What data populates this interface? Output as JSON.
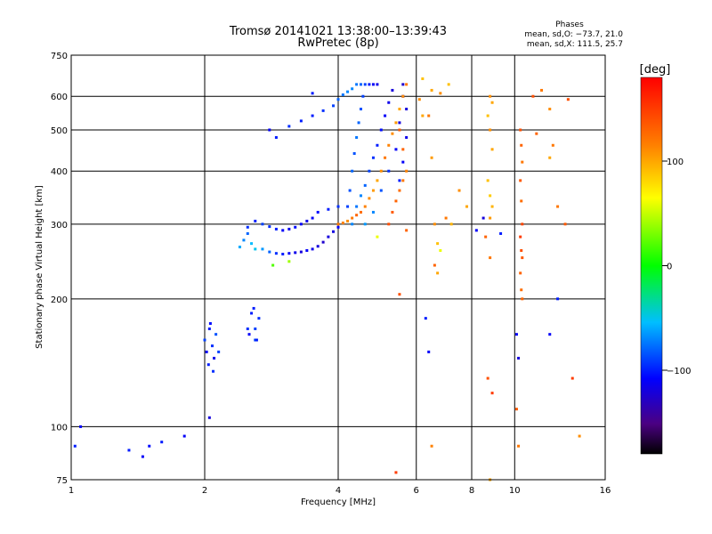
{
  "header": {
    "title_line1": "Tromsø 20141021 13:38:00–13:39:43",
    "title_line2": "RwPretec (8p)",
    "phases_title": "Phases",
    "phases_o": "mean, sd,O: −73.7, 21.0",
    "phases_x": "mean, sd,X: 111.5, 25.7"
  },
  "chart_data": {
    "type": "scatter",
    "title": "Tromsø 20141021 13:38:00–13:39:43",
    "subtitle": "RwPretec (8p)",
    "xlabel": "Frequency [MHz]",
    "ylabel": "Stationary phase Virtual Height [km]",
    "xscale": "log",
    "yscale": "log",
    "xlim": [
      1,
      16
    ],
    "ylim": [
      75,
      750
    ],
    "x_ticks": [
      1,
      2,
      4,
      6,
      8,
      10,
      16
    ],
    "x_tick_labels": [
      "1",
      "2",
      "4",
      "6",
      "8",
      "10",
      "16"
    ],
    "y_ticks": [
      75,
      100,
      200,
      300,
      400,
      500,
      600,
      750
    ],
    "y_tick_labels": [
      "75",
      "100",
      "200",
      "300",
      "400",
      "500",
      "600",
      "750"
    ],
    "grid": true,
    "colorbar": {
      "label": "[deg]",
      "range": [
        -180,
        180
      ],
      "ticks": [
        100,
        0,
        -100
      ],
      "tick_labels": [
        "100",
        "0",
        "−100"
      ]
    },
    "series": [
      {
        "mode": "O",
        "points": [
          [
            2.0,
            160,
            -90
          ],
          [
            2.02,
            150,
            -110
          ],
          [
            2.05,
            170,
            -100
          ],
          [
            2.08,
            155,
            -95
          ],
          [
            2.1,
            145,
            -115
          ],
          [
            2.12,
            165,
            -85
          ],
          [
            2.04,
            140,
            -100
          ],
          [
            2.15,
            150,
            -90
          ],
          [
            2.06,
            175,
            -105
          ],
          [
            2.09,
            135,
            -95
          ],
          [
            2.5,
            170,
            -95
          ],
          [
            2.55,
            185,
            -100
          ],
          [
            2.6,
            160,
            -90
          ],
          [
            2.52,
            165,
            -110
          ],
          [
            2.58,
            190,
            -100
          ],
          [
            2.4,
            265,
            -60
          ],
          [
            2.45,
            275,
            -70
          ],
          [
            2.5,
            285,
            -80
          ],
          [
            2.55,
            270,
            -55
          ],
          [
            2.6,
            262,
            -50
          ],
          [
            2.7,
            262,
            -65
          ],
          [
            2.8,
            258,
            -80
          ],
          [
            2.9,
            256,
            -95
          ],
          [
            3.0,
            255,
            -100
          ],
          [
            3.1,
            256,
            -110
          ],
          [
            3.2,
            257,
            -115
          ],
          [
            3.3,
            258,
            -120
          ],
          [
            3.4,
            260,
            -110
          ],
          [
            3.5,
            262,
            -115
          ],
          [
            3.6,
            266,
            -120
          ],
          [
            3.7,
            272,
            -125
          ],
          [
            3.8,
            280,
            -120
          ],
          [
            3.9,
            288,
            -118
          ],
          [
            4.0,
            295,
            -110
          ],
          [
            2.5,
            295,
            -95
          ],
          [
            2.6,
            305,
            -100
          ],
          [
            2.7,
            300,
            -90
          ],
          [
            2.8,
            296,
            -95
          ],
          [
            2.9,
            292,
            -100
          ],
          [
            3.0,
            290,
            -110
          ],
          [
            3.1,
            292,
            -115
          ],
          [
            3.2,
            295,
            -105
          ],
          [
            3.3,
            300,
            -110
          ],
          [
            3.4,
            305,
            -115
          ],
          [
            3.5,
            310,
            -110
          ],
          [
            3.6,
            320,
            -105
          ],
          [
            3.8,
            325,
            -100
          ],
          [
            4.0,
            330,
            -95
          ],
          [
            2.9,
            480,
            -100
          ],
          [
            3.1,
            510,
            -95
          ],
          [
            3.3,
            525,
            -100
          ],
          [
            3.5,
            540,
            -100
          ],
          [
            3.7,
            555,
            -95
          ],
          [
            3.9,
            570,
            -90
          ],
          [
            4.0,
            590,
            -80
          ],
          [
            4.1,
            605,
            -75
          ],
          [
            4.2,
            615,
            -70
          ],
          [
            4.3,
            625,
            -70
          ],
          [
            4.4,
            640,
            -75
          ],
          [
            4.5,
            640,
            -80
          ],
          [
            4.6,
            640,
            -90
          ],
          [
            4.7,
            640,
            -100
          ],
          [
            4.8,
            640,
            -110
          ],
          [
            4.9,
            640,
            -115
          ],
          [
            4.2,
            330,
            -90
          ],
          [
            4.25,
            360,
            -85
          ],
          [
            4.3,
            400,
            -80
          ],
          [
            4.35,
            440,
            -85
          ],
          [
            4.4,
            480,
            -75
          ],
          [
            4.45,
            520,
            -80
          ],
          [
            4.5,
            560,
            -85
          ],
          [
            4.55,
            600,
            -90
          ],
          [
            4.3,
            300,
            -70
          ],
          [
            4.4,
            330,
            -75
          ],
          [
            4.5,
            350,
            -70
          ],
          [
            4.6,
            370,
            -80
          ],
          [
            4.7,
            400,
            -90
          ],
          [
            4.8,
            430,
            -95
          ],
          [
            4.9,
            460,
            -100
          ],
          [
            5.0,
            500,
            -105
          ],
          [
            5.1,
            540,
            -110
          ],
          [
            5.2,
            580,
            -115
          ],
          [
            5.3,
            620,
            -120
          ],
          [
            4.6,
            300,
            -65
          ],
          [
            4.8,
            320,
            -70
          ],
          [
            5.0,
            360,
            -85
          ],
          [
            5.2,
            400,
            -95
          ],
          [
            5.4,
            450,
            -110
          ],
          [
            5.5,
            520,
            -120
          ],
          [
            5.6,
            600,
            -125
          ],
          [
            5.6,
            640,
            -125
          ],
          [
            5.7,
            560,
            -120
          ],
          [
            5.7,
            480,
            -115
          ],
          [
            5.6,
            420,
            -110
          ],
          [
            5.5,
            380,
            -100
          ],
          [
            1.02,
            90,
            -100
          ],
          [
            1.05,
            100,
            -110
          ],
          [
            1.35,
            88,
            -100
          ],
          [
            1.45,
            85,
            -110
          ],
          [
            1.5,
            90,
            -105
          ],
          [
            1.6,
            92,
            -100
          ],
          [
            1.8,
            95,
            -110
          ],
          [
            2.05,
            105,
            -120
          ],
          [
            2.6,
            170,
            -90
          ],
          [
            2.62,
            160,
            -100
          ],
          [
            2.65,
            180,
            -95
          ],
          [
            6.3,
            180,
            -100
          ],
          [
            6.4,
            150,
            -110
          ],
          [
            8.2,
            290,
            -110
          ],
          [
            8.5,
            310,
            -120
          ],
          [
            9.3,
            285,
            -100
          ],
          [
            10.1,
            165,
            -110
          ],
          [
            10.2,
            145,
            -120
          ],
          [
            12.5,
            200,
            -100
          ],
          [
            12.0,
            165,
            -110
          ],
          [
            2.8,
            500,
            -110
          ],
          [
            3.5,
            610,
            -100
          ]
        ]
      },
      {
        "mode": "X",
        "points": [
          [
            4.0,
            300,
            120
          ],
          [
            4.1,
            302,
            115
          ],
          [
            4.2,
            305,
            110
          ],
          [
            4.3,
            310,
            120
          ],
          [
            4.4,
            315,
            130
          ],
          [
            4.5,
            320,
            125
          ],
          [
            4.6,
            330,
            115
          ],
          [
            4.7,
            345,
            110
          ],
          [
            4.8,
            360,
            105
          ],
          [
            4.9,
            380,
            100
          ],
          [
            5.0,
            400,
            110
          ],
          [
            5.1,
            430,
            120
          ],
          [
            5.2,
            460,
            115
          ],
          [
            5.3,
            490,
            110
          ],
          [
            5.4,
            520,
            105
          ],
          [
            5.5,
            560,
            100
          ],
          [
            5.6,
            600,
            110
          ],
          [
            5.7,
            640,
            120
          ],
          [
            5.2,
            300,
            140
          ],
          [
            5.3,
            320,
            135
          ],
          [
            5.4,
            340,
            130
          ],
          [
            5.5,
            360,
            125
          ],
          [
            5.6,
            380,
            120
          ],
          [
            5.7,
            400,
            115
          ],
          [
            5.6,
            450,
            130
          ],
          [
            5.5,
            500,
            135
          ],
          [
            6.2,
            660,
            90
          ],
          [
            6.5,
            620,
            100
          ],
          [
            6.8,
            610,
            110
          ],
          [
            7.1,
            640,
            90
          ],
          [
            6.4,
            540,
            120
          ],
          [
            6.5,
            430,
            105
          ],
          [
            6.6,
            300,
            110
          ],
          [
            6.7,
            270,
            90
          ],
          [
            6.8,
            260,
            60
          ],
          [
            6.6,
            240,
            130
          ],
          [
            6.7,
            230,
            100
          ],
          [
            7.0,
            310,
            120
          ],
          [
            7.2,
            300,
            95
          ],
          [
            7.5,
            360,
            110
          ],
          [
            7.8,
            330,
            100
          ],
          [
            8.8,
            500,
            110
          ],
          [
            8.9,
            450,
            100
          ],
          [
            8.7,
            380,
            90
          ],
          [
            8.8,
            350,
            85
          ],
          [
            8.9,
            330,
            95
          ],
          [
            8.8,
            310,
            105
          ],
          [
            8.7,
            540,
            90
          ],
          [
            8.9,
            580,
            100
          ],
          [
            8.8,
            600,
            110
          ],
          [
            8.6,
            280,
            130
          ],
          [
            8.8,
            250,
            120
          ],
          [
            8.7,
            130,
            140
          ],
          [
            8.9,
            120,
            150
          ],
          [
            10.3,
            500,
            140
          ],
          [
            10.35,
            460,
            130
          ],
          [
            10.4,
            420,
            120
          ],
          [
            10.3,
            380,
            135
          ],
          [
            10.35,
            340,
            125
          ],
          [
            10.4,
            300,
            145
          ],
          [
            10.3,
            280,
            150
          ],
          [
            10.35,
            260,
            140
          ],
          [
            10.4,
            250,
            135
          ],
          [
            10.3,
            230,
            130
          ],
          [
            10.35,
            210,
            125
          ],
          [
            10.4,
            200,
            130
          ],
          [
            10.2,
            90,
            120
          ],
          [
            10.1,
            110,
            135
          ],
          [
            11.0,
            600,
            140
          ],
          [
            11.5,
            620,
            120
          ],
          [
            12.0,
            560,
            110
          ],
          [
            12.0,
            430,
            100
          ],
          [
            12.5,
            330,
            120
          ],
          [
            13.0,
            300,
            135
          ],
          [
            13.5,
            130,
            150
          ],
          [
            14.0,
            95,
            110
          ],
          [
            13.2,
            590,
            140
          ],
          [
            12.2,
            460,
            120
          ],
          [
            11.2,
            490,
            130
          ],
          [
            5.4,
            78,
            150
          ],
          [
            6.5,
            90,
            115
          ],
          [
            8.8,
            75,
            100
          ],
          [
            5.5,
            205,
            140
          ],
          [
            5.7,
            290,
            130
          ],
          [
            6.1,
            590,
            110
          ],
          [
            6.2,
            540,
            100
          ],
          [
            4.9,
            280,
            60
          ],
          [
            3.1,
            245,
            40
          ],
          [
            2.85,
            240,
            20
          ]
        ]
      }
    ]
  }
}
